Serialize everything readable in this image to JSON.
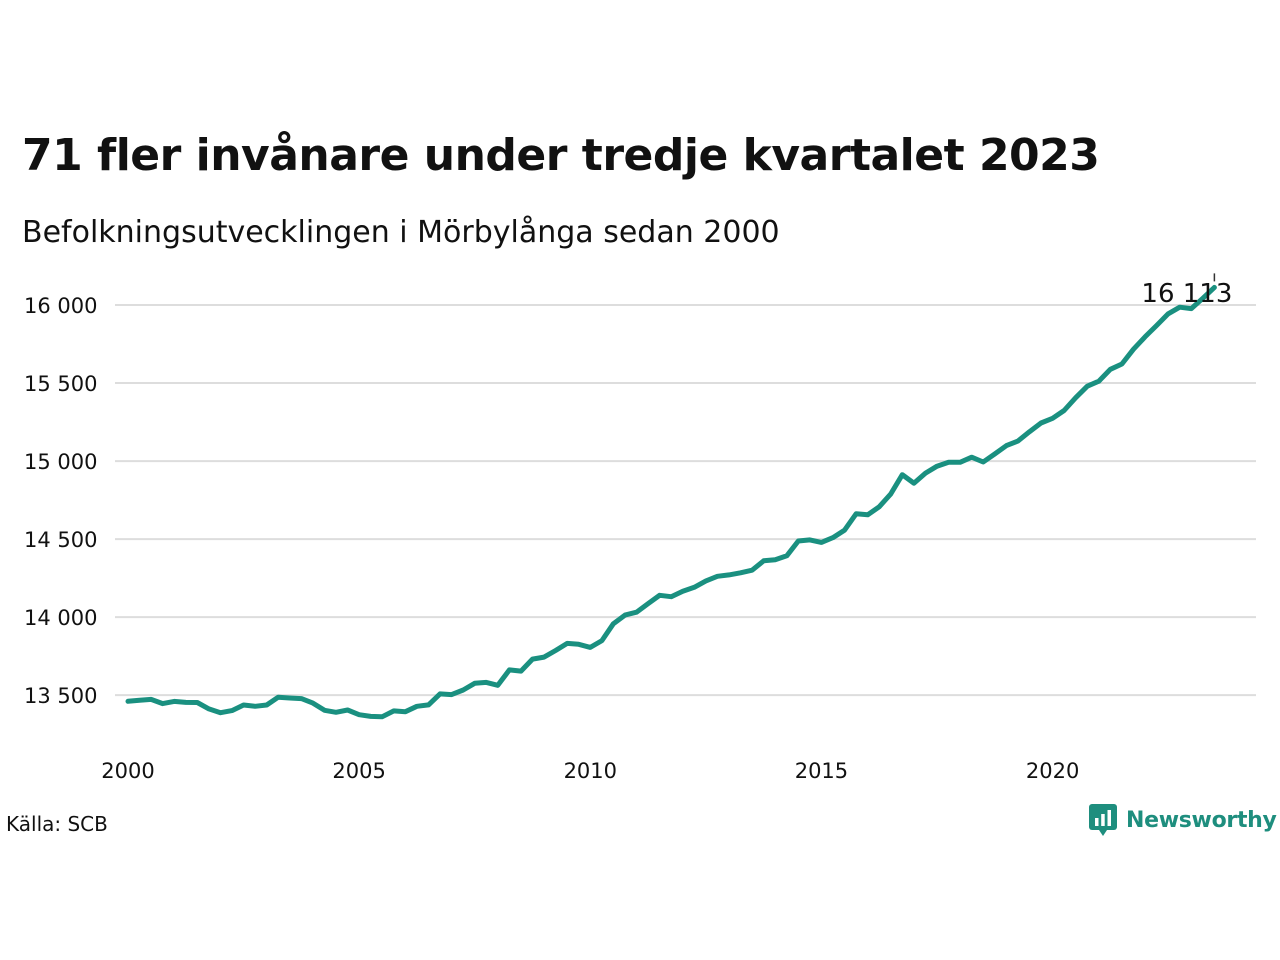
{
  "chart_data": {
    "type": "line",
    "title": "71 fler invånare under tredje kvartalet 2023",
    "subtitle": "Befolkningsutvecklingen i Mörbylånga sedan 2000",
    "xlabel": "",
    "ylabel": "",
    "xlim": [
      2000,
      2024.4
    ],
    "ylim": [
      13200,
      16250
    ],
    "x_ticks": [
      2000,
      2005,
      2010,
      2015,
      2020
    ],
    "x_tick_labels": [
      "2000",
      "2005",
      "2010",
      "2015",
      "2020"
    ],
    "y_ticks": [
      13500,
      14000,
      14500,
      15000,
      15500,
      16000
    ],
    "y_tick_labels": [
      "13 500",
      "14 000",
      "14 500",
      "15 000",
      "15 500",
      "16 000"
    ],
    "grid": true,
    "line_color": "#1a9080",
    "grid_color": "#dddddd",
    "series": [
      {
        "x": [
          2000.0,
          2000.25,
          2000.5,
          2000.75,
          2001.0,
          2001.25,
          2001.5,
          2001.75,
          2002.0,
          2002.25,
          2002.5,
          2002.75,
          2003.0,
          2003.25,
          2003.5,
          2003.75,
          2004.0,
          2004.25,
          2004.5,
          2004.75,
          2005.0,
          2005.25,
          2005.5,
          2005.75,
          2006.0,
          2006.25,
          2006.5,
          2006.75,
          2007.0,
          2007.25,
          2007.5,
          2007.75,
          2008.0,
          2008.25,
          2008.5,
          2008.75,
          2009.0,
          2009.25,
          2009.5,
          2009.75,
          2010.0,
          2010.25,
          2010.5,
          2010.75,
          2011.0,
          2011.25,
          2011.5,
          2011.75,
          2012.0,
          2012.25,
          2012.5,
          2012.75,
          2013.0,
          2013.25,
          2013.5,
          2013.75,
          2014.0,
          2014.25,
          2014.5,
          2014.75,
          2015.0,
          2015.25,
          2015.5,
          2015.75,
          2016.0,
          2016.25,
          2016.5,
          2016.75,
          2017.0,
          2017.25,
          2017.5,
          2017.75,
          2018.0,
          2018.25,
          2018.5,
          2018.75,
          2019.0,
          2019.25,
          2019.5,
          2019.75,
          2020.0,
          2020.25,
          2020.5,
          2020.75,
          2021.0,
          2021.25,
          2021.5,
          2021.75,
          2022.0,
          2022.25,
          2022.5,
          2022.75,
          2023.0,
          2023.25,
          2023.5
        ],
        "values": [
          13461,
          13467,
          13473,
          13446,
          13460,
          13454,
          13453,
          13412,
          13388,
          13401,
          13437,
          13429,
          13437,
          13487,
          13482,
          13478,
          13449,
          13403,
          13390,
          13405,
          13375,
          13364,
          13362,
          13399,
          13394,
          13429,
          13438,
          13508,
          13504,
          13533,
          13576,
          13582,
          13563,
          13662,
          13654,
          13731,
          13744,
          13786,
          13832,
          13826,
          13806,
          13850,
          13958,
          14013,
          14032,
          14087,
          14140,
          14131,
          14166,
          14191,
          14232,
          14262,
          14271,
          14284,
          14301,
          14361,
          14368,
          14393,
          14488,
          14495,
          14479,
          14510,
          14558,
          14662,
          14656,
          14707,
          14790,
          14913,
          14858,
          14923,
          14967,
          14993,
          14992,
          15025,
          14994,
          15046,
          15099,
          15128,
          15188,
          15244,
          15274,
          15324,
          15406,
          15480,
          15512,
          15588,
          15622,
          15717,
          15796,
          15869,
          15944,
          15986,
          15977,
          16043,
          16113
        ]
      }
    ],
    "annotations": [
      {
        "text": "16 113",
        "x": 2023.5,
        "y": 16113
      }
    ]
  },
  "footer": {
    "source": "Källa: SCB",
    "brand": "Newsworthy"
  },
  "icons": {
    "brand_logo": "newsworthy-logo-icon"
  },
  "colors": {
    "accent": "#1a9080",
    "brand": "#1e8e7e",
    "text": "#111111"
  }
}
